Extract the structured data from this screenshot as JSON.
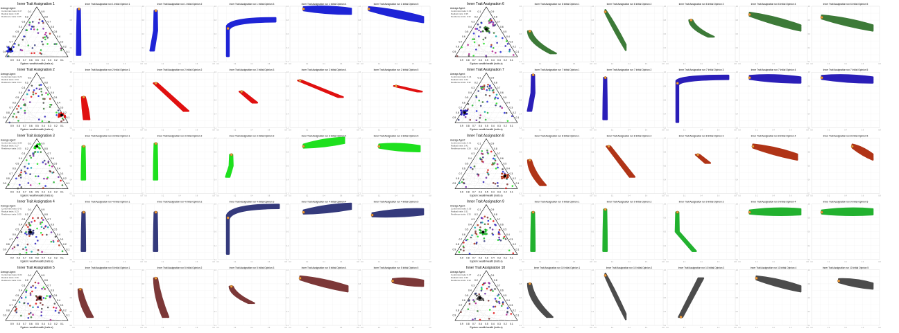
{
  "chart_data": {
    "type": "scatter",
    "description_type": "multi-panel figure: ternary scatter plots of agent positions plus trajectory panels per inner trait assignation",
    "panel_label": "Initial Opinion",
    "run_label": "Inner Trait Assignation run",
    "triangle_ticks": [
      "0.1",
      "0.2",
      "0.3",
      "0.4",
      "0.5",
      "0.6",
      "0.7",
      "0.8",
      "0.9"
    ],
    "triangle_axis_bottom": "Egoism: wealth/wealth (traits a)",
    "legend_lines": [
      "Average Agent:",
      "Conformist traits: ",
      "Radical traits: ",
      "Resilience traits: "
    ],
    "assignations": [
      {
        "id": 1,
        "title": "Inner Trait Assignation 1",
        "color": "#1f24d6",
        "conf": "0.47",
        "rad": "0.18",
        "res": "0.35",
        "cluster": [
          0.08,
          0.85
        ],
        "panels": [
          {
            "shape": "vertical",
            "start": [
              0.08,
              0.05
            ],
            "end": [
              0.08,
              0.88
            ]
          },
          {
            "shape": "vertical",
            "start": [
              0.15,
              0.08
            ],
            "end": [
              0.1,
              0.8
            ]
          },
          {
            "shape": "hook",
            "start": [
              0.15,
              0.4
            ],
            "end": [
              0.85,
              0.25
            ]
          },
          {
            "shape": "fan",
            "start": [
              0.2,
              0.05
            ],
            "end": [
              0.9,
              0.1
            ]
          },
          {
            "shape": "fan",
            "start": [
              0.1,
              0.05
            ],
            "end": [
              0.9,
              0.25
            ]
          }
        ]
      },
      {
        "id": 2,
        "title": "Inner Trait Assignation 2",
        "color": "#e01010",
        "conf": "0.23",
        "rad": "0.53",
        "res": "0.24",
        "cluster": [
          0.9,
          0.85
        ],
        "panels": [
          {
            "shape": "blob",
            "start": [
              0.15,
              0.45
            ],
            "end": [
              0.2,
              0.85
            ]
          },
          {
            "shape": "diag",
            "start": [
              0.15,
              0.2
            ],
            "end": [
              0.6,
              0.7
            ]
          },
          {
            "shape": "diag",
            "start": [
              0.35,
              0.35
            ],
            "end": [
              0.55,
              0.55
            ]
          },
          {
            "shape": "diag",
            "start": [
              0.15,
              0.15
            ],
            "end": [
              0.75,
              0.45
            ]
          },
          {
            "shape": "diag",
            "start": [
              0.5,
              0.25
            ],
            "end": [
              0.85,
              0.35
            ]
          }
        ]
      },
      {
        "id": 3,
        "title": "Inner Trait Assignation 3",
        "color": "#1ee01e",
        "conf": "0.38",
        "rad": "0.27",
        "res": "0.35",
        "cluster": [
          0.5,
          0.15
        ],
        "panels": [
          {
            "shape": "vertical",
            "start": [
              0.15,
              0.15
            ],
            "end": [
              0.15,
              0.75
            ]
          },
          {
            "shape": "vertical",
            "start": [
              0.15,
              0.1
            ],
            "end": [
              0.15,
              0.75
            ]
          },
          {
            "shape": "vertical",
            "start": [
              0.2,
              0.3
            ],
            "end": [
              0.15,
              0.7
            ]
          },
          {
            "shape": "fan",
            "start": [
              0.2,
              0.15
            ],
            "end": [
              0.8,
              0.05
            ]
          },
          {
            "shape": "fan",
            "start": [
              0.25,
              0.15
            ],
            "end": [
              0.85,
              0.2
            ]
          }
        ]
      },
      {
        "id": 4,
        "title": "Inner Trait Assignation 4",
        "color": "#353a7c",
        "conf": "0.42",
        "rad": "0.23",
        "res": "0.35",
        "cluster": [
          0.4,
          0.55
        ],
        "panels": [
          {
            "shape": "vertical",
            "start": [
              0.15,
              0.15
            ],
            "end": [
              0.15,
              0.85
            ]
          },
          {
            "shape": "vertical",
            "start": [
              0.15,
              0.15
            ],
            "end": [
              0.15,
              0.85
            ]
          },
          {
            "shape": "hook",
            "start": [
              0.15,
              0.25
            ],
            "end": [
              0.9,
              0.05
            ]
          },
          {
            "shape": "fan",
            "start": [
              0.2,
              0.15
            ],
            "end": [
              0.9,
              0.05
            ]
          },
          {
            "shape": "fan",
            "start": [
              0.15,
              0.2
            ],
            "end": [
              0.9,
              0.15
            ]
          }
        ]
      },
      {
        "id": 5,
        "title": "Inner Trait Assignation 5",
        "color": "#7c3838",
        "conf": "0.33",
        "rad": "0.36",
        "res": "0.31",
        "cluster": [
          0.55,
          0.55
        ],
        "panels": [
          {
            "shape": "blob",
            "start": [
              0.1,
              0.35
            ],
            "end": [
              0.25,
              0.85
            ]
          },
          {
            "shape": "blob",
            "start": [
              0.15,
              0.15
            ],
            "end": [
              0.3,
              0.85
            ]
          },
          {
            "shape": "blob",
            "start": [
              0.2,
              0.3
            ],
            "end": [
              0.5,
              0.6
            ]
          },
          {
            "shape": "fan",
            "start": [
              0.15,
              0.15
            ],
            "end": [
              0.85,
              0.35
            ]
          },
          {
            "shape": "fan",
            "start": [
              0.45,
              0.2
            ],
            "end": [
              0.9,
              0.25
            ]
          }
        ]
      },
      {
        "id": 6,
        "title": "Inner Trait Assignation 6",
        "color": "#3d7a38",
        "conf": "0.33",
        "rad": "0.35",
        "res": "0.32",
        "cluster": [
          0.5,
          0.45
        ],
        "panels": [
          {
            "shape": "blob",
            "start": [
              0.1,
              0.45
            ],
            "end": [
              0.45,
              0.85
            ]
          },
          {
            "shape": "fan",
            "start": [
              0.15,
              0.1
            ],
            "end": [
              0.45,
              0.75
            ]
          },
          {
            "shape": "blob",
            "start": [
              0.35,
              0.25
            ],
            "end": [
              0.65,
              0.55
            ]
          },
          {
            "shape": "fan",
            "start": [
              0.15,
              0.15
            ],
            "end": [
              0.9,
              0.4
            ]
          },
          {
            "shape": "fan",
            "start": [
              0.15,
              0.2
            ],
            "end": [
              0.9,
              0.4
            ]
          }
        ]
      },
      {
        "id": 7,
        "title": "Inner Trait Assignation 7",
        "color": "#2b1fb8",
        "conf": "0.44",
        "rad": "0.24",
        "res": "0.32",
        "cluster": [
          0.15,
          0.8
        ],
        "panels": [
          {
            "shape": "vertical",
            "start": [
              0.15,
              0.05
            ],
            "end": [
              0.1,
              0.7
            ]
          },
          {
            "shape": "vertical",
            "start": [
              0.15,
              0.1
            ],
            "end": [
              0.15,
              0.85
            ]
          },
          {
            "shape": "hook",
            "start": [
              0.15,
              0.2
            ],
            "end": [
              0.9,
              0.1
            ]
          },
          {
            "shape": "fan",
            "start": [
              0.15,
              0.1
            ],
            "end": [
              0.9,
              0.15
            ]
          },
          {
            "shape": "fan",
            "start": [
              0.15,
              0.1
            ],
            "end": [
              0.9,
              0.15
            ]
          }
        ]
      },
      {
        "id": 8,
        "title": "Inner Trait Assignation 8",
        "color": "#b03417",
        "conf": "0.31",
        "rad": "0.41",
        "res": "0.28",
        "cluster": [
          0.8,
          0.75
        ],
        "panels": [
          {
            "shape": "blob",
            "start": [
              0.1,
              0.4
            ],
            "end": [
              0.3,
              0.85
            ]
          },
          {
            "shape": "diag",
            "start": [
              0.2,
              0.15
            ],
            "end": [
              0.55,
              0.7
            ]
          },
          {
            "shape": "diag",
            "start": [
              0.45,
              0.3
            ],
            "end": [
              0.6,
              0.45
            ]
          },
          {
            "shape": "fan",
            "start": [
              0.2,
              0.15
            ],
            "end": [
              0.85,
              0.35
            ]
          },
          {
            "shape": "fan",
            "start": [
              0.6,
              0.15
            ],
            "end": [
              0.9,
              0.35
            ]
          }
        ]
      },
      {
        "id": 9,
        "title": "Inner Trait Assignation 9",
        "color": "#22b12f",
        "conf": "0.36",
        "rad": "0.31",
        "res": "0.33",
        "cluster": [
          0.45,
          0.55
        ],
        "panels": [
          {
            "shape": "vertical",
            "start": [
              0.15,
              0.15
            ],
            "end": [
              0.15,
              0.85
            ]
          },
          {
            "shape": "vertical",
            "start": [
              0.15,
              0.1
            ],
            "end": [
              0.15,
              0.85
            ]
          },
          {
            "shape": "vertical",
            "start": [
              0.15,
              0.15
            ],
            "end": [
              0.4,
              0.85
            ]
          },
          {
            "shape": "fan",
            "start": [
              0.15,
              0.15
            ],
            "end": [
              0.9,
              0.15
            ]
          },
          {
            "shape": "fan",
            "start": [
              0.15,
              0.15
            ],
            "end": [
              0.9,
              0.15
            ]
          }
        ]
      },
      {
        "id": 10,
        "title": "Inner Trait Assignation 10",
        "color": "#4c4c4c",
        "conf": "0.37",
        "rad": "0.30",
        "res": "0.33",
        "cluster": [
          0.4,
          0.55
        ],
        "panels": [
          {
            "shape": "blob",
            "start": [
              0.1,
              0.25
            ],
            "end": [
              0.4,
              0.85
            ]
          },
          {
            "shape": "fan",
            "start": [
              0.15,
              0.1
            ],
            "end": [
              0.45,
              0.85
            ]
          },
          {
            "shape": "diag",
            "start": [
              0.2,
              0.85
            ],
            "end": [
              0.5,
              0.15
            ]
          },
          {
            "shape": "fan",
            "start": [
              0.25,
              0.15
            ],
            "end": [
              0.9,
              0.35
            ]
          },
          {
            "shape": "fan",
            "start": [
              0.4,
              0.2
            ],
            "end": [
              0.9,
              0.3
            ]
          }
        ]
      }
    ]
  }
}
